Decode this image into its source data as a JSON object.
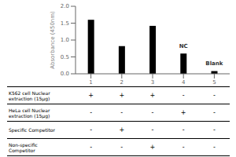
{
  "chart_data": {
    "type": "bar",
    "categories": [
      "1",
      "2",
      "3",
      "4",
      "5"
    ],
    "values": [
      1.6,
      0.82,
      1.42,
      0.6,
      0.08
    ],
    "color": "#000000",
    "ylabel": "Absorbance (450nm)",
    "ylim": [
      0,
      2.0
    ],
    "yticks": [
      {
        "value": 0,
        "label": "0.0"
      },
      {
        "value": 0.5,
        "label": "0.5"
      },
      {
        "value": 1,
        "label": "1.0"
      },
      {
        "value": 1.5,
        "label": "1.5"
      },
      {
        "value": 2,
        "label": "2.0"
      }
    ],
    "grid": false,
    "annotations": [
      {
        "text": "NC",
        "category": "4",
        "y": 0.65
      },
      {
        "text": "Blank",
        "category": "5",
        "y": 0.14
      }
    ],
    "table_rows": [
      {
        "label": "K562 cell Nuclear\nextraction (15μg)",
        "values": [
          "+",
          "+",
          "+",
          "-",
          "-"
        ]
      },
      {
        "label": "HeLa cell Nuclear\nextraction (15μg)",
        "values": [
          "-",
          "-",
          "-",
          "+",
          "-"
        ]
      },
      {
        "label": "Specific Competitor",
        "values": [
          "-",
          "+",
          "-",
          "-",
          "-"
        ]
      },
      {
        "label": "Non-specific\nCompetitor",
        "values": [
          "-",
          "-",
          "+",
          "-",
          "-"
        ]
      }
    ]
  }
}
